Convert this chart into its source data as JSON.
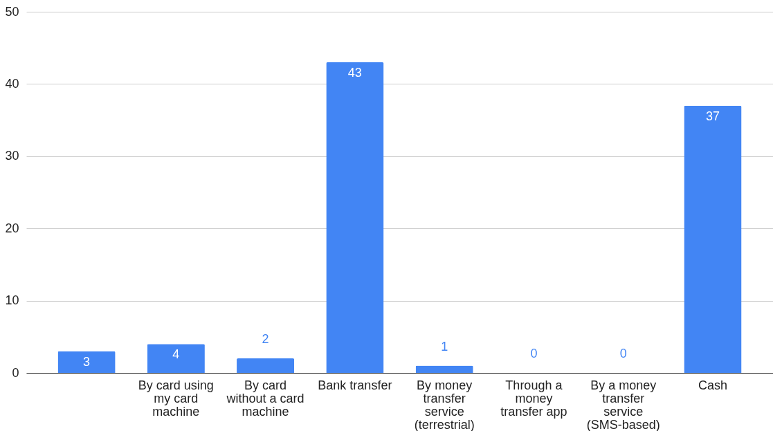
{
  "chart_data": {
    "type": "bar",
    "categories": [
      null,
      "By card using my card machine",
      "By card without a card machine",
      "Bank transfer",
      "By money transfer service (terrestrial)",
      "Through a money transfer app",
      "By a money transfer service (SMS-based)",
      "Cash"
    ],
    "values": [
      3,
      4,
      2,
      43,
      1,
      0,
      0,
      37
    ],
    "color": "#4285f4",
    "ylim": [
      0,
      50
    ],
    "yticks": [
      0,
      10,
      20,
      30,
      40,
      50
    ],
    "grid": "y",
    "data_labels": true
  }
}
